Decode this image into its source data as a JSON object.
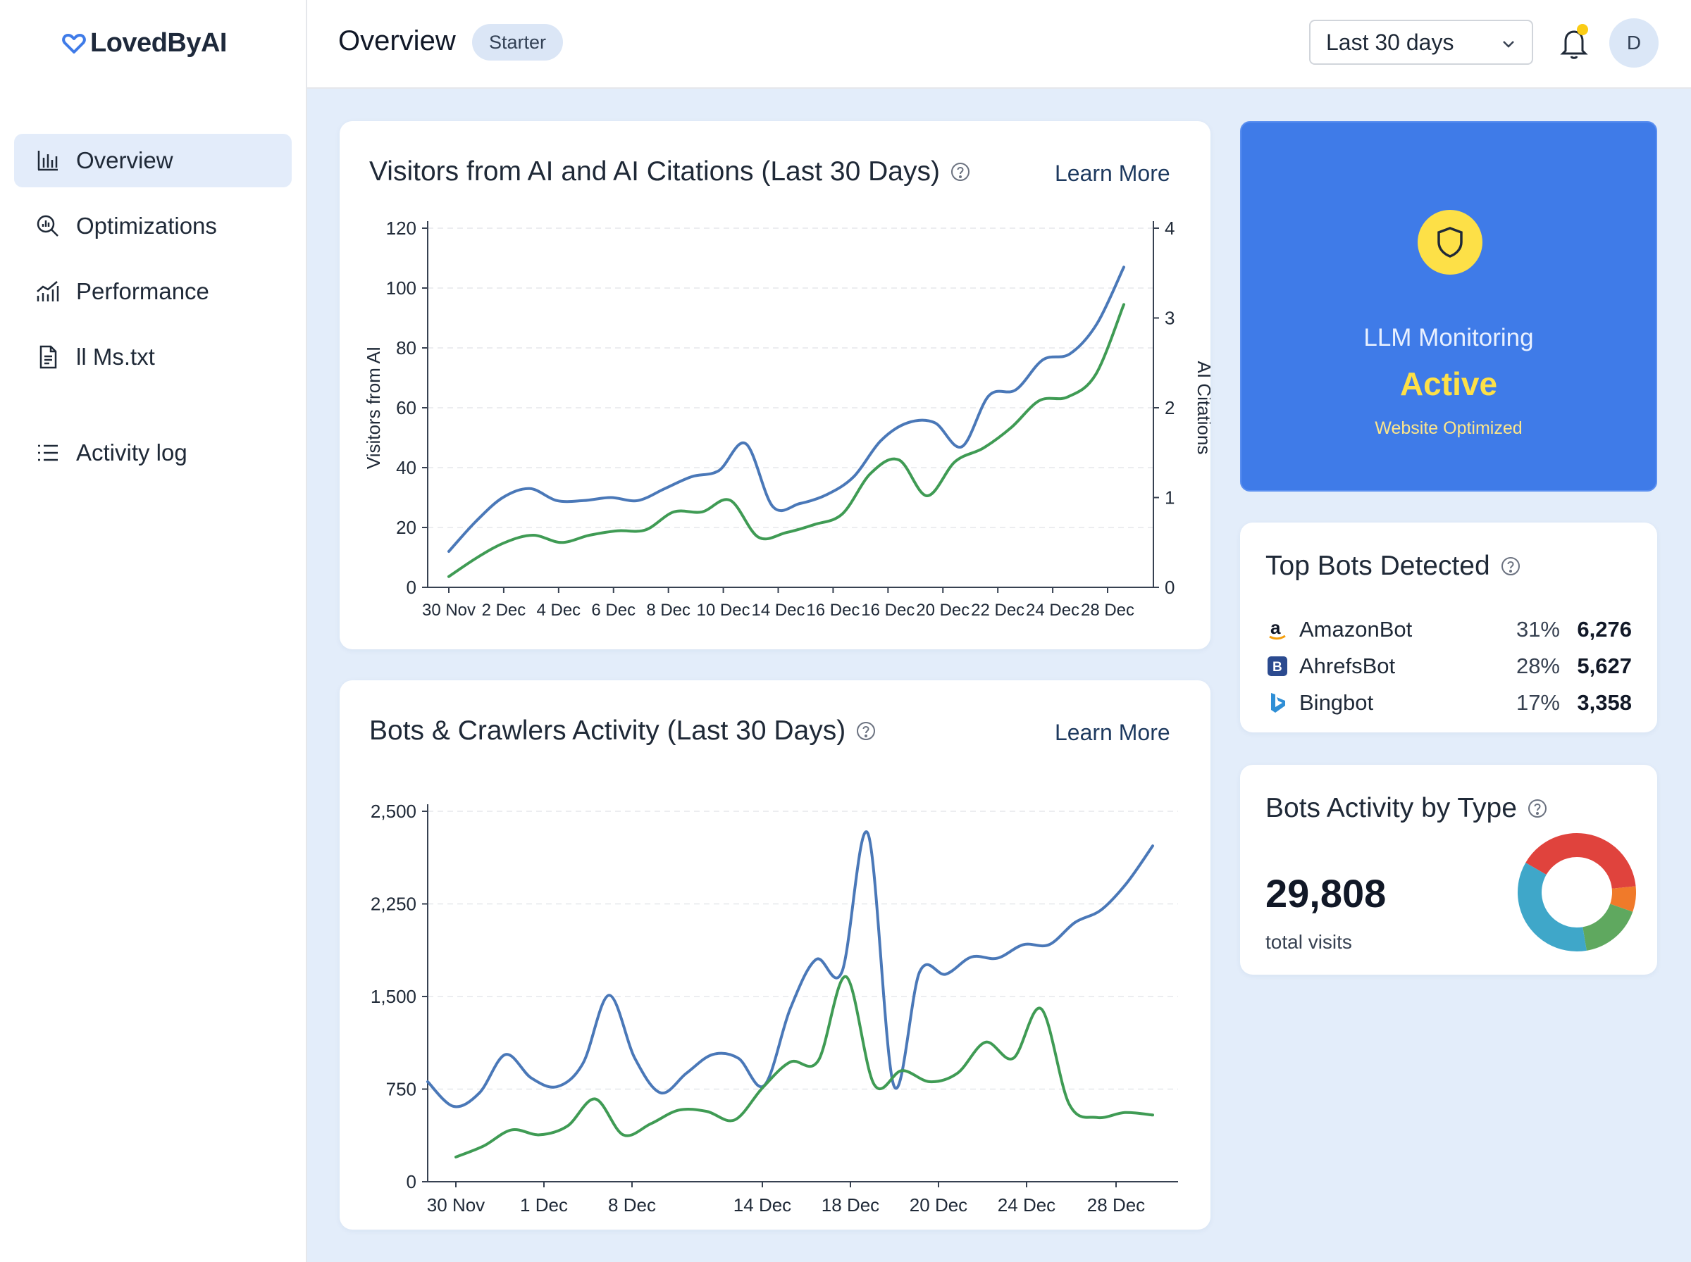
{
  "app": {
    "logo_text": "LovedByAI"
  },
  "sidebar": {
    "items": [
      {
        "label": "Overview",
        "icon": "bar-chart-icon",
        "active": true
      },
      {
        "label": "Optimizations",
        "icon": "magnify-chart-icon"
      },
      {
        "label": "Performance",
        "icon": "performance-chart-icon"
      },
      {
        "label": "ll Ms.txt",
        "icon": "document-icon"
      },
      {
        "label": "Activity log",
        "icon": "list-icon"
      }
    ]
  },
  "header": {
    "title": "Overview",
    "plan_badge": "Starter",
    "date_range": "Last 30 days",
    "avatar_initial": "D",
    "notification_dot_color": "#facc15"
  },
  "visitors_card": {
    "title": "Visitors from AI and AI Citations (Last 30 Days)",
    "learn_more": "Learn More"
  },
  "bots_card": {
    "title": "Bots & Crawlers Activity (Last 30 Days)",
    "learn_more": "Learn More"
  },
  "llm_monitoring": {
    "title": "LLM Monitoring",
    "status": "Active",
    "subtitle": "Website Optimized"
  },
  "top_bots": {
    "title": "Top Bots Detected",
    "bots": [
      {
        "name": "AmazonBot",
        "percent": "31%",
        "count": "6,276",
        "icon": "amazon-icon"
      },
      {
        "name": "AhrefsBot",
        "percent": "28%",
        "count": "5,627",
        "icon": "ahrefs-icon"
      },
      {
        "name": "Bingbot",
        "percent": "17%",
        "count": "3,358",
        "icon": "bing-icon"
      }
    ]
  },
  "bots_by_type": {
    "title": "Bots Activity by Type",
    "total": "29,808",
    "total_label": "total visits"
  },
  "chart_data": [
    {
      "type": "line",
      "title": "Visitors from AI and AI Citations (Last 30 Days)",
      "xlabel": "",
      "ylabel": "Visitors from AI",
      "y2label": "AI Citations",
      "ylim": [
        0,
        120
      ],
      "y2lim": [
        0,
        4
      ],
      "yticks": [
        0,
        20,
        40,
        60,
        80,
        100,
        120
      ],
      "y2ticks": [
        0,
        1,
        2,
        3,
        4
      ],
      "x_tick_labels": [
        "30 Nov",
        "2 Dec",
        "4 Dec",
        "6 Dec",
        "8 Dec",
        "10 Dec",
        "14 Dec",
        "16 Dec",
        "16 Dec",
        "20 Dec",
        "22 Dec",
        "24 Dec",
        "28 Dec"
      ],
      "grid": true,
      "series": [
        {
          "axis": "left",
          "color": "#4a78b8",
          "values": [
            12,
            22,
            30,
            33,
            29,
            29,
            30,
            29,
            33,
            37,
            39,
            48,
            27,
            28,
            31,
            37,
            49,
            55,
            55,
            47,
            64,
            66,
            76,
            78,
            88,
            107
          ]
        },
        {
          "axis": "right",
          "color": "#3f9b54",
          "values": [
            0.12,
            0.33,
            0.5,
            0.58,
            0.5,
            0.58,
            0.63,
            0.64,
            0.84,
            0.84,
            0.97,
            0.56,
            0.61,
            0.7,
            0.82,
            1.27,
            1.42,
            1.02,
            1.4,
            1.55,
            1.78,
            2.08,
            2.12,
            2.37,
            3.15
          ]
        }
      ]
    },
    {
      "type": "line",
      "title": "Bots & Crawlers Activity (Last 30 Days)",
      "xlabel": "",
      "ylabel": "",
      "yticks": [
        "0",
        "750",
        "1,500",
        "2,250",
        "2,500"
      ],
      "x_tick_labels": [
        "30 Nov",
        "1 Dec",
        "8 Dec",
        "14 Dec",
        "18 Dec",
        "20 Dec",
        "24 Dec",
        "28 Dec"
      ],
      "grid": true,
      "series": [
        {
          "color": "#4a78b8",
          "values": [
            810,
            610,
            720,
            1030,
            840,
            770,
            960,
            1510,
            1000,
            720,
            880,
            1030,
            1000,
            780,
            1400,
            1800,
            1700,
            2820,
            780,
            1700,
            1680,
            1820,
            1810,
            1920,
            1920,
            2100,
            2200,
            2420,
            2720
          ]
        },
        {
          "color": "#3f9b54",
          "values": [
            200,
            290,
            420,
            380,
            450,
            670,
            380,
            470,
            580,
            570,
            500,
            760,
            970,
            980,
            1660,
            790,
            900,
            810,
            880,
            1130,
            1000,
            1400,
            630,
            520,
            560,
            540
          ]
        }
      ]
    },
    {
      "type": "pie",
      "title": "Bots Activity by Type",
      "donut": true,
      "slices": [
        {
          "color": "#e0433d",
          "value": 40
        },
        {
          "color": "#f07a2a",
          "value": 7
        },
        {
          "color": "#5fa85f",
          "value": 17
        },
        {
          "color": "#3fa7c9",
          "value": 36
        }
      ]
    }
  ]
}
